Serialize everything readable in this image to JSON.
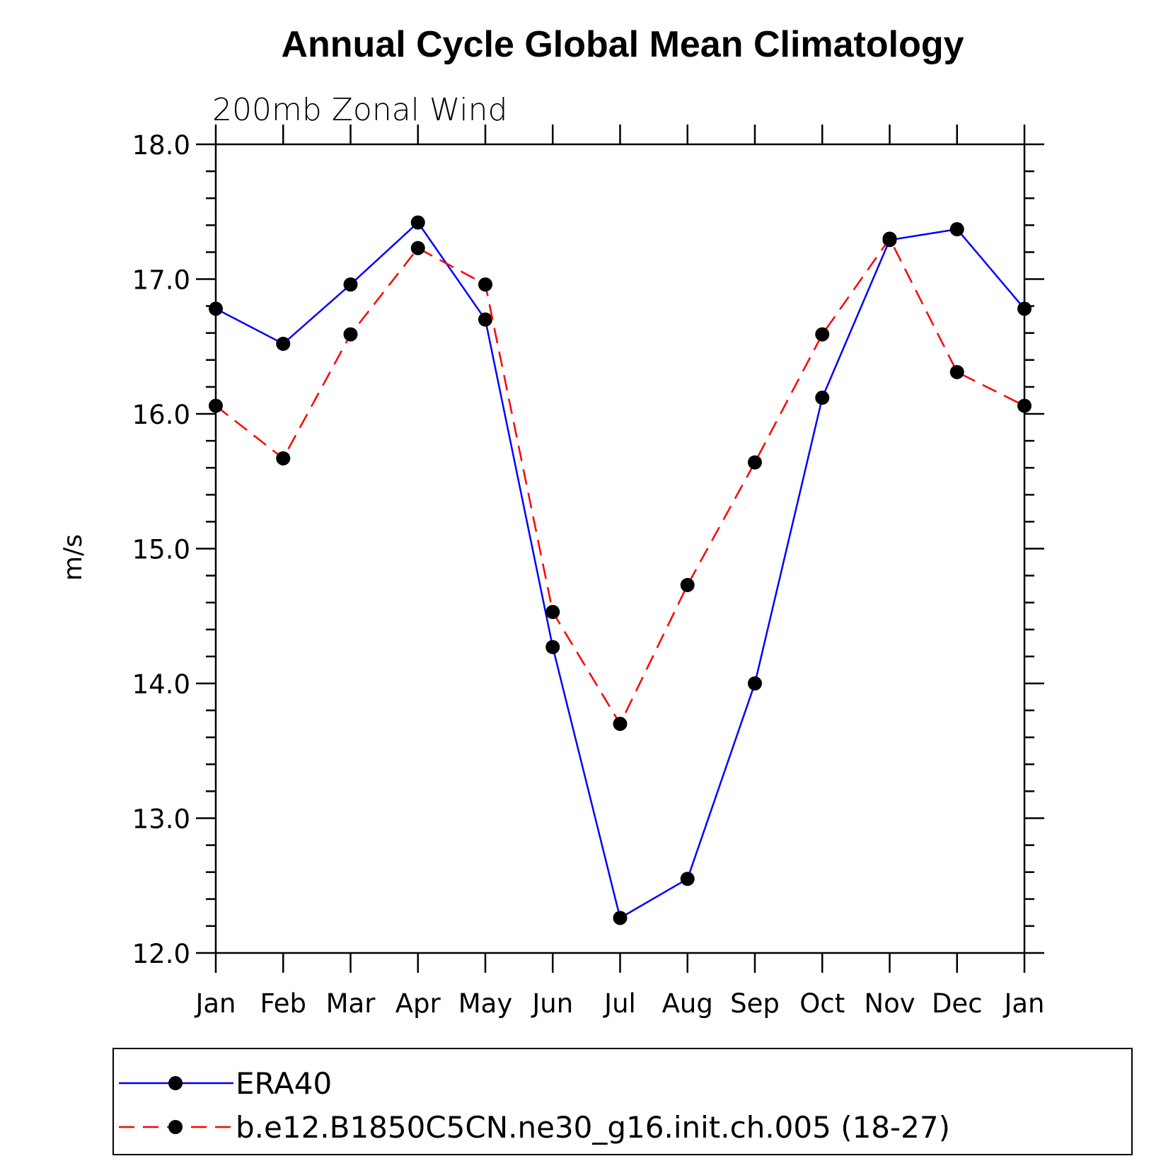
{
  "chart_data": {
    "type": "line",
    "title": "Annual Cycle Global Mean Climatology",
    "subtitle": "200mb Zonal Wind",
    "xlabel": "",
    "ylabel": "m/s",
    "categories": [
      "Jan",
      "Feb",
      "Mar",
      "Apr",
      "May",
      "Jun",
      "Jul",
      "Aug",
      "Sep",
      "Oct",
      "Nov",
      "Dec",
      "Jan"
    ],
    "ylim": [
      12.0,
      18.0
    ],
    "yticks": [
      "12.0",
      "13.0",
      "14.0",
      "15.0",
      "16.0",
      "17.0",
      "18.0"
    ],
    "grid": false,
    "legend_position": "bottom",
    "series": [
      {
        "name": "ERA40",
        "color": "#0000ff",
        "dash": "solid",
        "values": [
          16.78,
          16.52,
          16.96,
          17.42,
          16.7,
          14.27,
          12.26,
          12.55,
          14.0,
          16.12,
          17.29,
          17.37,
          16.78
        ]
      },
      {
        "name": "b.e12.B1850C5CN.ne30_g16.init.ch.005 (18-27)",
        "color": "#ff0000",
        "dash": "dashed",
        "values": [
          16.06,
          15.67,
          16.59,
          17.23,
          16.96,
          14.53,
          13.7,
          14.73,
          15.64,
          16.59,
          17.3,
          16.31,
          16.06
        ]
      }
    ]
  }
}
